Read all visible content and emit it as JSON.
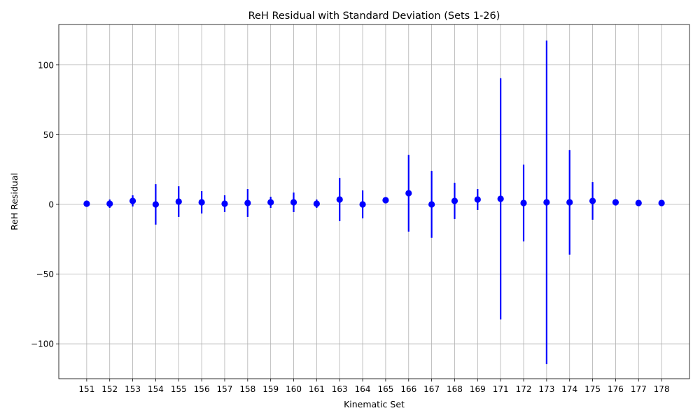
{
  "chart_data": {
    "type": "scatter",
    "title": "ReH Residual with Standard Deviation (Sets 1-26)",
    "xlabel": "Kinematic Set",
    "ylabel": "ReH Residual",
    "categories": [
      "151",
      "152",
      "153",
      "154",
      "155",
      "156",
      "157",
      "158",
      "159",
      "160",
      "161",
      "163",
      "164",
      "165",
      "166",
      "167",
      "168",
      "169",
      "171",
      "172",
      "173",
      "174",
      "175",
      "176",
      "177",
      "178"
    ],
    "series": [
      {
        "values": [
          0.5,
          0.5,
          2.5,
          0.0,
          2.0,
          1.5,
          0.5,
          1.0,
          1.5,
          1.5,
          0.5,
          3.5,
          0.0,
          3.0,
          8.0,
          0.0,
          2.5,
          3.5,
          4.0,
          1.0,
          1.5,
          1.5,
          2.5,
          1.5,
          1.0,
          1.0
        ],
        "errors": [
          0.5,
          3.0,
          4.0,
          14.5,
          11.0,
          8.0,
          6.0,
          10.0,
          4.0,
          7.0,
          3.0,
          15.5,
          10.0,
          2.0,
          27.5,
          24.0,
          13.0,
          7.5,
          86.5,
          27.5,
          116.0,
          37.5,
          13.5,
          0.5,
          0.5,
          0.5
        ],
        "color": "#0000ff"
      }
    ],
    "ylim": [
      -125,
      129
    ],
    "yticks": [
      -100,
      -50,
      0,
      50,
      100
    ],
    "ytick_labels": [
      "−100",
      "−50",
      "0",
      "50",
      "100"
    ],
    "grid": true
  }
}
